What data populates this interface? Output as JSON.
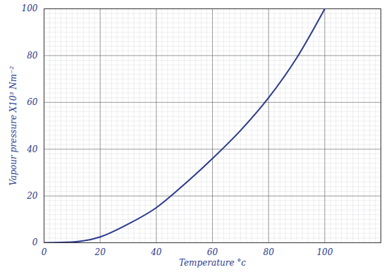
{
  "chart_data": {
    "type": "line",
    "x_label": "Temperature °c",
    "y_label": "Vapour pressure X10³ Nm⁻²",
    "x": [
      0,
      10,
      14,
      20,
      30,
      40,
      50,
      60,
      70,
      80,
      90,
      100
    ],
    "values": [
      0,
      0.3,
      0.8,
      2.5,
      8,
      15,
      25,
      36,
      48,
      62,
      79,
      100
    ],
    "color": "#2b3a8f",
    "xlim": [
      0,
      120
    ],
    "xticks": [
      0,
      20,
      40,
      60,
      80,
      100
    ],
    "ylim": [
      0,
      100
    ],
    "yticks": [
      0,
      20,
      40,
      60,
      80,
      100
    ],
    "grid": true
  }
}
